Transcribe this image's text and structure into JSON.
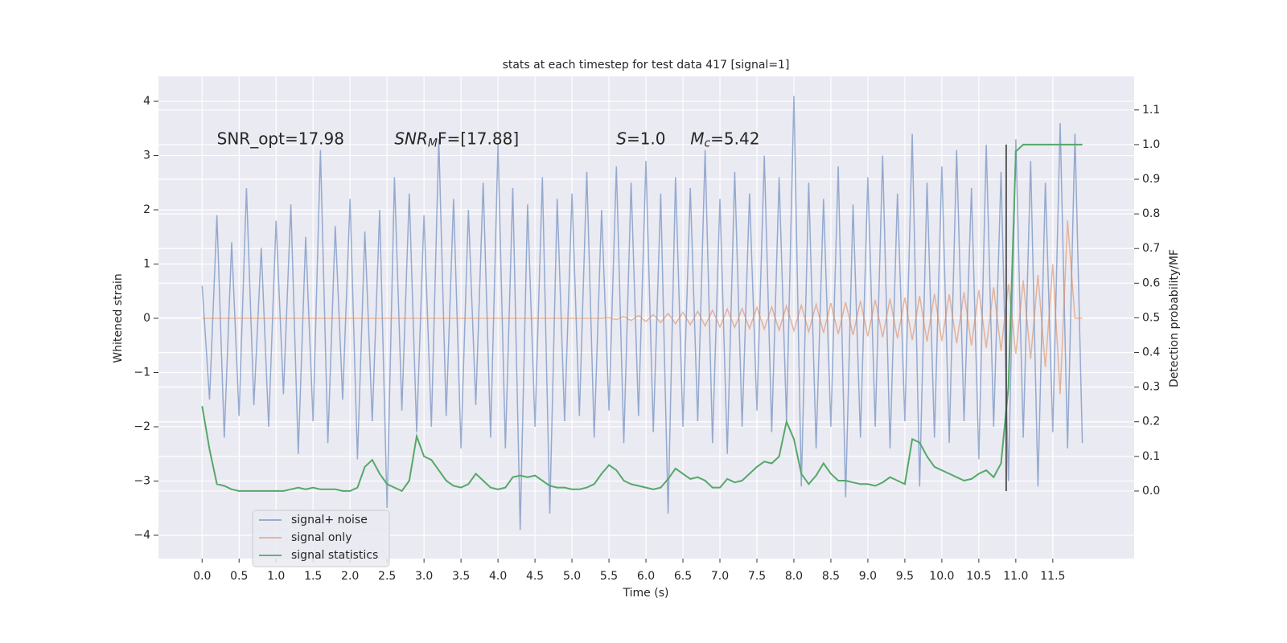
{
  "chart_data": {
    "type": "line",
    "title": "stats at each timestep for test data 417 [signal=1]",
    "xlabel": "Time (s)",
    "ylabel": "Whitened strain",
    "y2label": "Detection probability/MF",
    "annotations": [
      {
        "text": "SNR_opt=17.98",
        "x": 0.2,
        "y": 3.3
      },
      {
        "text": "SNR",
        "sub": "M",
        "after": "F=[17.88]",
        "x": 2.6,
        "y": 3.3
      },
      {
        "text": "S",
        "after": "=1.0",
        "x": 5.6,
        "y": 3.3
      },
      {
        "text": "M",
        "sub": "c",
        "after": "=5.42",
        "x": 6.6,
        "y": 3.3
      }
    ],
    "xlim": [
      -0.59,
      12.6
    ],
    "ylim": [
      -4.43,
      4.46
    ],
    "y2lim": [
      -0.195,
      1.197
    ],
    "xticks": [
      {
        "value": 0,
        "label": "0.0"
      },
      {
        "value": 0.5,
        "label": "0.5"
      },
      {
        "value": 1,
        "label": "1.0"
      },
      {
        "value": 1.5,
        "label": "1.5"
      },
      {
        "value": 2,
        "label": "2.0"
      },
      {
        "value": 2.5,
        "label": "2.5"
      },
      {
        "value": 3,
        "label": "3.0"
      },
      {
        "value": 3.5,
        "label": "3.5"
      },
      {
        "value": 4,
        "label": "4.0"
      },
      {
        "value": 4.5,
        "label": "4.5"
      },
      {
        "value": 5,
        "label": "5.0"
      },
      {
        "value": 5.5,
        "label": "5.5"
      },
      {
        "value": 6,
        "label": "6.0"
      },
      {
        "value": 6.5,
        "label": "6.5"
      },
      {
        "value": 7,
        "label": "7.0"
      },
      {
        "value": 7.5,
        "label": "7.5"
      },
      {
        "value": 8,
        "label": "8.0"
      },
      {
        "value": 8.5,
        "label": "8.5"
      },
      {
        "value": 9,
        "label": "9.0"
      },
      {
        "value": 9.5,
        "label": "9.5"
      },
      {
        "value": 10,
        "label": "10.0"
      },
      {
        "value": 10.5,
        "label": "10.5"
      },
      {
        "value": 11,
        "label": "11.0"
      },
      {
        "value": 11.5,
        "label": "11.5"
      }
    ],
    "yticks": [
      {
        "value": -4,
        "label": "−4"
      },
      {
        "value": -3,
        "label": "−3"
      },
      {
        "value": -2,
        "label": "−2"
      },
      {
        "value": -1,
        "label": "−1"
      },
      0,
      1,
      2,
      3,
      4
    ],
    "y2ticks": [
      {
        "value": 0,
        "label": "0.0"
      },
      {
        "value": 0.1,
        "label": "0.1"
      },
      {
        "value": 0.2,
        "label": "0.2"
      },
      {
        "value": 0.3,
        "label": "0.3"
      },
      {
        "value": 0.4,
        "label": "0.4"
      },
      {
        "value": 0.5,
        "label": "0.5"
      },
      {
        "value": 0.6,
        "label": "0.6"
      },
      {
        "value": 0.7,
        "label": "0.7"
      },
      {
        "value": 0.8,
        "label": "0.8"
      },
      {
        "value": 0.9,
        "label": "0.9"
      },
      {
        "value": 1.0,
        "label": "1.0"
      },
      {
        "value": 1.1,
        "label": "1.1"
      }
    ],
    "grid": true,
    "legend": "lower left",
    "marker_x": 10.87,
    "x": [
      0,
      0.1,
      0.2,
      0.3,
      0.4,
      0.5,
      0.6,
      0.7,
      0.8,
      0.9,
      1,
      1.1,
      1.2,
      1.3,
      1.4,
      1.5,
      1.6,
      1.7,
      1.8,
      1.9,
      2,
      2.1,
      2.2,
      2.3,
      2.4,
      2.5,
      2.6,
      2.7,
      2.8,
      2.9,
      3,
      3.1,
      3.2,
      3.3,
      3.4,
      3.5,
      3.6,
      3.7,
      3.8,
      3.9,
      4,
      4.1,
      4.2,
      4.3,
      4.4,
      4.5,
      4.6,
      4.7,
      4.8,
      4.9,
      5,
      5.1,
      5.2,
      5.3,
      5.4,
      5.5,
      5.6,
      5.7,
      5.8,
      5.9,
      6,
      6.1,
      6.2,
      6.3,
      6.4,
      6.5,
      6.6,
      6.7,
      6.8,
      6.9,
      7,
      7.1,
      7.2,
      7.3,
      7.4,
      7.5,
      7.6,
      7.7,
      7.8,
      7.9,
      8,
      8.1,
      8.2,
      8.3,
      8.4,
      8.5,
      8.6,
      8.7,
      8.8,
      8.9,
      9,
      9.1,
      9.2,
      9.3,
      9.4,
      9.5,
      9.6,
      9.7,
      9.8,
      9.9,
      10,
      10.1,
      10.2,
      10.3,
      10.4,
      10.5,
      10.6,
      10.7,
      10.8,
      10.9,
      11,
      11.1,
      11.2,
      11.3,
      11.4,
      11.5,
      11.6,
      11.7,
      11.8,
      11.9
    ],
    "series": [
      {
        "name": "signal+ noise",
        "color": "#4c72b0",
        "values": [
          0.6,
          -1.5,
          1.9,
          -2.2,
          1.4,
          -1.8,
          2.4,
          -1.6,
          1.3,
          -2.0,
          1.8,
          -1.4,
          2.1,
          -2.5,
          1.5,
          -1.9,
          3.1,
          -2.3,
          1.7,
          -1.5,
          2.2,
          -2.6,
          1.6,
          -1.9,
          2.0,
          -3.5,
          2.6,
          -1.7,
          2.3,
          -2.1,
          1.9,
          -2.0,
          3.3,
          -1.8,
          2.2,
          -2.4,
          2.0,
          -1.6,
          2.5,
          -2.2,
          3.2,
          -2.4,
          2.4,
          -3.9,
          2.1,
          -2.0,
          2.6,
          -3.6,
          2.2,
          -1.9,
          2.3,
          -1.8,
          2.7,
          -2.2,
          2.0,
          -1.7,
          2.8,
          -2.3,
          2.5,
          -1.8,
          2.9,
          -2.1,
          2.3,
          -3.6,
          2.6,
          -2.0,
          2.4,
          -1.9,
          3.1,
          -2.3,
          2.2,
          -2.5,
          2.7,
          -2.0,
          2.3,
          -1.7,
          3.0,
          -2.1,
          2.6,
          -1.9,
          4.1,
          -3.1,
          2.5,
          -2.4,
          2.2,
          -2.0,
          2.8,
          -3.3,
          2.1,
          -2.2,
          2.6,
          -2.0,
          3.0,
          -2.4,
          2.3,
          -1.9,
          3.4,
          -3.1,
          2.5,
          -2.2,
          2.8,
          -2.3,
          3.1,
          -1.9,
          2.4,
          -2.6,
          3.2,
          -2.0,
          2.7,
          -3.0,
          3.3,
          -2.2,
          2.9,
          -3.1,
          2.5,
          -2.1,
          3.6,
          -2.4,
          3.4,
          -2.3
        ]
      },
      {
        "name": "signal only",
        "color": "#dd8452",
        "values": [
          0,
          0,
          0,
          0,
          0,
          0,
          0,
          0,
          0,
          0,
          0,
          0,
          0,
          0,
          0,
          0,
          0,
          0,
          0,
          0,
          0,
          0,
          0,
          0,
          0,
          0,
          0,
          0,
          0,
          0,
          0,
          0,
          0,
          0,
          0,
          0,
          0,
          0,
          0,
          0,
          0,
          0,
          0,
          0,
          0,
          0,
          0,
          0,
          0,
          0,
          0,
          0,
          0,
          0,
          0,
          0.01,
          -0.02,
          0.03,
          -0.04,
          0.05,
          -0.06,
          0.07,
          -0.08,
          0.09,
          -0.1,
          0.11,
          -0.12,
          0.13,
          -0.14,
          0.15,
          -0.16,
          0.17,
          -0.17,
          0.18,
          -0.19,
          0.2,
          -0.2,
          0.21,
          -0.22,
          0.23,
          -0.23,
          0.24,
          -0.25,
          0.26,
          -0.27,
          0.28,
          -0.29,
          0.3,
          -0.31,
          0.32,
          -0.33,
          0.34,
          -0.35,
          0.36,
          -0.37,
          0.38,
          -0.4,
          0.41,
          -0.43,
          0.45,
          -0.42,
          0.44,
          -0.46,
          0.48,
          -0.5,
          0.52,
          -0.54,
          0.57,
          -0.6,
          0.63,
          -0.66,
          0.7,
          -0.75,
          0.8,
          -0.9,
          1.0,
          -1.4,
          1.8,
          0,
          0
        ]
      },
      {
        "name": "signal statistics",
        "color": "#55a868",
        "axis": "y2",
        "values": [
          0.245,
          0.12,
          0.02,
          0.015,
          0.005,
          0.0,
          0.0,
          0.0,
          0.0,
          0.0,
          0.0,
          0.0,
          0.005,
          0.01,
          0.005,
          0.01,
          0.005,
          0.005,
          0.005,
          0.0,
          0.0,
          0.01,
          0.07,
          0.09,
          0.05,
          0.02,
          0.01,
          0.0,
          0.03,
          0.158,
          0.1,
          0.09,
          0.06,
          0.03,
          0.015,
          0.01,
          0.02,
          0.05,
          0.03,
          0.01,
          0.005,
          0.01,
          0.04,
          0.045,
          0.04,
          0.045,
          0.03,
          0.015,
          0.01,
          0.01,
          0.005,
          0.005,
          0.01,
          0.02,
          0.05,
          0.075,
          0.06,
          0.03,
          0.02,
          0.015,
          0.01,
          0.005,
          0.01,
          0.035,
          0.065,
          0.05,
          0.035,
          0.04,
          0.03,
          0.01,
          0.01,
          0.035,
          0.025,
          0.03,
          0.05,
          0.07,
          0.085,
          0.08,
          0.1,
          0.2,
          0.15,
          0.05,
          0.02,
          0.045,
          0.08,
          0.05,
          0.03,
          0.03,
          0.025,
          0.02,
          0.02,
          0.015,
          0.025,
          0.04,
          0.03,
          0.02,
          0.15,
          0.14,
          0.1,
          0.07,
          0.06,
          0.05,
          0.04,
          0.03,
          0.035,
          0.05,
          0.06,
          0.04,
          0.08,
          0.3,
          0.98,
          1.0,
          1.0,
          1.0,
          1.0,
          1.0,
          1.0,
          1.0,
          1.0,
          1.0
        ]
      }
    ]
  }
}
